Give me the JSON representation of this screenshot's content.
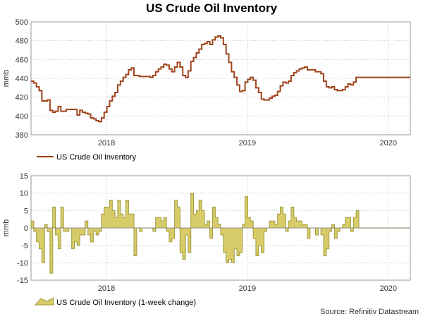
{
  "title": "US Crude Oil Inventory",
  "source": "Source: Refinitiv Datastream",
  "colors": {
    "line": "#a0441c",
    "bar_fill": "#d8cc6a",
    "bar_stroke": "#9f9a3a",
    "grid": "#c8c8c8"
  },
  "chart_data": [
    {
      "type": "line",
      "ylabel": "mmb",
      "ylim": [
        380,
        500
      ],
      "yticks": [
        380,
        400,
        420,
        440,
        460,
        480,
        500
      ],
      "xticks": [
        "2018",
        "2019",
        "2020"
      ],
      "xtick_positions": [
        27.86,
        79.86,
        131.86
      ],
      "xlim": [
        0,
        140
      ],
      "grid": true,
      "legend": "bottom-left",
      "series": [
        {
          "name": "US Crude Oil Inventory",
          "x": [
            0,
            1,
            2,
            3,
            4,
            5,
            6,
            7,
            8,
            9,
            10,
            11,
            12,
            13,
            14,
            15,
            16,
            17,
            18,
            19,
            20,
            21,
            22,
            23,
            24,
            25,
            26,
            27,
            28,
            29,
            30,
            31,
            32,
            33,
            34,
            35,
            36,
            37,
            38,
            39,
            40,
            41,
            42,
            43,
            44,
            45,
            46,
            47,
            48,
            49,
            50,
            51,
            52,
            53,
            54,
            55,
            56,
            57,
            58,
            59,
            60,
            61,
            62,
            63,
            64,
            65,
            66,
            67,
            68,
            69,
            70,
            71,
            72,
            73,
            74,
            75,
            76,
            77,
            78,
            79,
            80,
            81,
            82,
            83,
            84,
            85,
            86,
            87,
            88,
            89,
            90,
            91,
            92,
            93,
            94,
            95,
            96,
            97,
            98,
            99,
            100,
            101,
            102,
            103,
            104,
            105,
            106,
            107,
            108,
            109,
            110,
            111,
            112,
            113,
            114,
            115,
            116,
            117,
            118,
            119,
            120,
            121,
            122,
            123,
            124,
            125,
            126,
            127,
            128,
            129,
            130,
            131,
            132,
            133,
            134,
            135,
            136,
            137,
            138,
            139
          ],
          "values": [
            437,
            435,
            431,
            427,
            416,
            416,
            417,
            406,
            404,
            405,
            410,
            405,
            405,
            407,
            407,
            407,
            407,
            401,
            406,
            404,
            403,
            402,
            398,
            397,
            395,
            394,
            398,
            404,
            410,
            416,
            421,
            425,
            433,
            437,
            441,
            444,
            449,
            451,
            443,
            443,
            442,
            442,
            442,
            442,
            441,
            443,
            447,
            450,
            452,
            455,
            454,
            450,
            447,
            452,
            457,
            452,
            443,
            441,
            448,
            458,
            462,
            467,
            471,
            476,
            477,
            479,
            476,
            481,
            484,
            485,
            483,
            476,
            466,
            457,
            447,
            441,
            433,
            426,
            427,
            436,
            439,
            441,
            438,
            430,
            425,
            418,
            417,
            417,
            419,
            421,
            422,
            426,
            432,
            436,
            435,
            437,
            443,
            446,
            448,
            450,
            451,
            452,
            449,
            449,
            449,
            447,
            447,
            445,
            437,
            431,
            430,
            431,
            428,
            427,
            427,
            428,
            431,
            434,
            433,
            436,
            441,
            441,
            441,
            441,
            441,
            441,
            441,
            441,
            441,
            441,
            441,
            441,
            441,
            441,
            441,
            441,
            441,
            441,
            441,
            441
          ]
        }
      ]
    },
    {
      "type": "bar",
      "ylabel": "mmb",
      "ylim": [
        -15,
        15
      ],
      "yticks": [
        -15,
        -10,
        -5,
        0,
        5,
        10,
        15
      ],
      "xticks": [
        "2018",
        "2019",
        "2020"
      ],
      "xtick_positions": [
        27.86,
        79.86,
        131.86
      ],
      "xlim": [
        0,
        140
      ],
      "grid": true,
      "legend": "bottom-left",
      "series": [
        {
          "name": "US Crude Oil Inventory (1-week change)",
          "values": [
            2,
            -1,
            -4,
            -6,
            -10,
            1,
            -1,
            -13,
            6,
            -2,
            -6,
            6,
            -1,
            -1,
            0,
            -6,
            -4,
            -5,
            -2,
            -2,
            2,
            -2,
            -4,
            -1,
            -2,
            -1,
            4,
            6,
            6,
            8,
            5,
            3,
            8,
            4,
            3,
            8,
            4,
            4,
            -8,
            0,
            -1,
            0,
            0,
            0,
            0,
            -1,
            3,
            3,
            2,
            3,
            -1,
            -4,
            -3,
            8,
            6,
            -7,
            -9,
            -2,
            -7,
            10,
            4,
            5,
            8,
            5,
            1,
            2,
            -3,
            6,
            3,
            1,
            -2,
            -7,
            -10,
            -9,
            -10,
            -6,
            -8,
            -7,
            1,
            9,
            3,
            2,
            -3,
            -8,
            -5,
            -7,
            -1,
            0,
            2,
            2,
            1,
            4,
            6,
            4,
            -1,
            2,
            6,
            3,
            2,
            2,
            1,
            1,
            -3,
            0,
            0,
            -2,
            0,
            -2,
            -8,
            -6,
            -1,
            1,
            -3,
            -1,
            0,
            1,
            3,
            3,
            -1,
            3,
            5,
            0,
            0,
            0,
            0,
            0,
            0,
            0,
            0,
            0,
            0,
            0,
            0,
            0,
            0,
            0,
            0,
            0,
            0,
            0
          ]
        }
      ]
    }
  ]
}
